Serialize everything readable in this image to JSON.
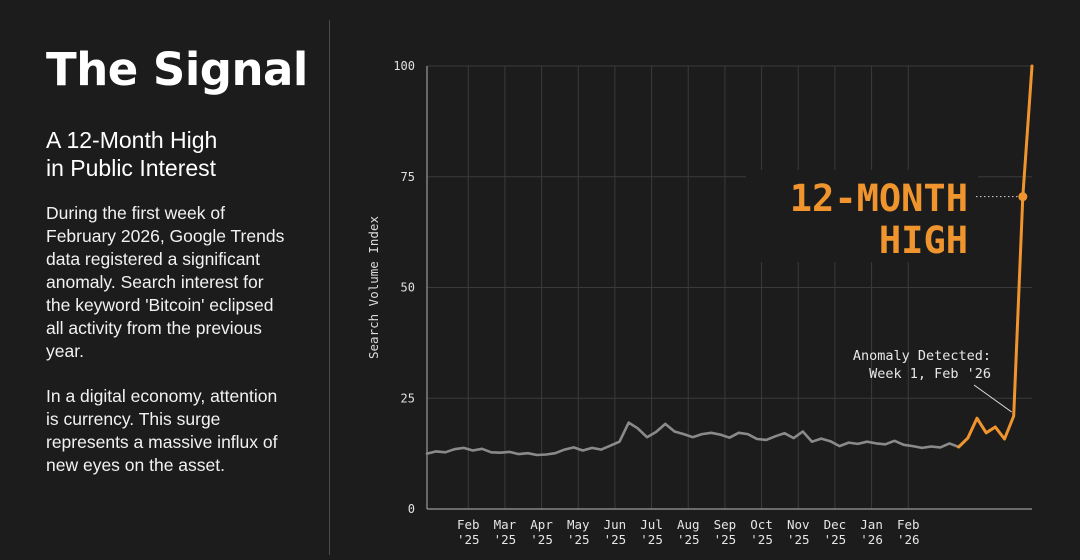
{
  "sidebar": {
    "title": "The Signal",
    "subtitle_line1": "A 12-Month High",
    "subtitle_line2": "in Public Interest",
    "paragraphs": [
      "During the first week of February 2026, Google Trends data registered a significant anomaly. Search interest for the keyword 'Bitcoin' eclipsed all activity from the previous year.",
      "In a digital economy, attention is currency. This surge represents a massive influx of new eyes on the asset."
    ]
  },
  "colors": {
    "background": "#1c1c1c",
    "baseline_series": "#8a8a8a",
    "highlight_series": "#f0952e",
    "grid": "#3a3a3a",
    "text": "#ffffff"
  },
  "chart_data": {
    "type": "line",
    "title": "",
    "xlabel": "",
    "ylabel": "Search Volume Index",
    "ylim": [
      0,
      100
    ],
    "yticks": [
      0,
      25,
      50,
      75,
      100
    ],
    "grid": true,
    "x_tick_labels": [
      [
        "Feb",
        "'25"
      ],
      [
        "Mar",
        "'25"
      ],
      [
        "Apr",
        "'25"
      ],
      [
        "May",
        "'25"
      ],
      [
        "Jun",
        "'25"
      ],
      [
        "Jul",
        "'25"
      ],
      [
        "Aug",
        "'25"
      ],
      [
        "Sep",
        "'25"
      ],
      [
        "Oct",
        "'25"
      ],
      [
        "Nov",
        "'25"
      ],
      [
        "Dec",
        "'25"
      ],
      [
        "Jan",
        "'26"
      ],
      [
        "Feb",
        "'26"
      ]
    ],
    "x_tick_weeks": [
      4.5,
      8.5,
      12.5,
      16.5,
      20.5,
      24.5,
      28.5,
      32.5,
      36.5,
      40.5,
      44.5,
      48.5,
      52.5
    ],
    "series": [
      {
        "role": "baseline",
        "values": [
          12.5,
          13,
          12.8,
          13.5,
          13.8,
          13.2,
          13.6,
          12.8,
          12.7,
          12.9,
          12.4,
          12.6,
          12.2,
          12.3,
          12.6,
          13.4,
          13.9,
          13.2,
          13.8,
          13.4,
          14.3,
          15.2,
          19.5,
          18.2,
          16.2,
          17.4,
          19.2,
          17.5,
          16.9,
          16.2,
          16.9,
          17.2,
          16.8,
          16.1,
          17.2,
          16.9,
          15.8,
          15.6,
          16.4,
          17.1,
          16.0,
          17.5,
          15.2,
          15.9,
          15.3,
          14.2,
          15.0,
          14.7,
          15.2,
          14.8,
          14.6,
          15.4,
          14.5,
          14.2,
          13.8,
          14.1,
          13.9,
          14.8,
          14.0
        ]
      },
      {
        "role": "highlight",
        "values": [
          14.0,
          16.0,
          20.5,
          17.2,
          18.5,
          15.8,
          21.0,
          70.5,
          100
        ]
      }
    ],
    "annotations": [
      {
        "id": "peak",
        "text_line1": "12-MONTH",
        "text_line2": "HIGH",
        "value": 70.5
      },
      {
        "id": "anomaly",
        "text_line1": "Anomaly Detected:",
        "text_line2": "Week 1, Feb '26"
      }
    ]
  }
}
